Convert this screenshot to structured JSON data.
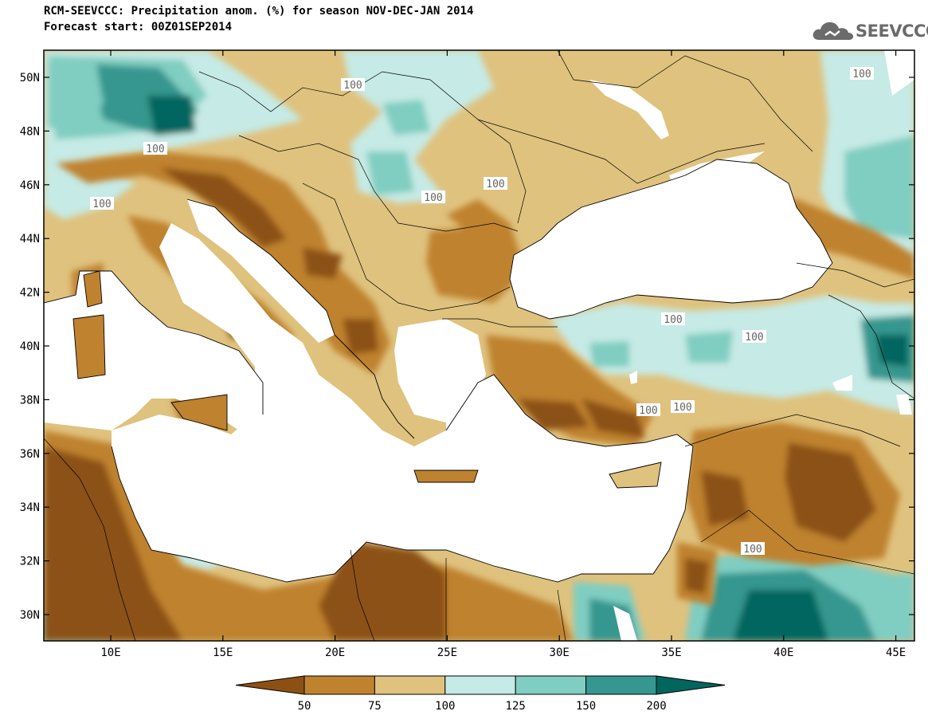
{
  "title_line1": "RCM-SEEVCCC: Precipitation anom. (%) for season NOV-DEC-JAN 2014",
  "title_line2": "Forecast start: 00Z01SEP2014",
  "logo": {
    "text": "SEEVCCC",
    "icon": "cloud-icon"
  },
  "map": {
    "lat_ticks": [
      "50N",
      "48N",
      "46N",
      "44N",
      "42N",
      "40N",
      "38N",
      "36N",
      "34N",
      "32N",
      "30N"
    ],
    "lon_ticks": [
      "10E",
      "15E",
      "20E",
      "25E",
      "30E",
      "35E",
      "40E",
      "45E"
    ],
    "contour_labels": [
      "100",
      "100",
      "100",
      "100",
      "100",
      "100",
      "100",
      "100",
      "100",
      "100",
      "100",
      "100"
    ],
    "colors": {
      "below_50": "#8c5112",
      "50_75": "#bf822e",
      "75_100": "#dfc27e",
      "100_125": "#c6eae5",
      "125_150": "#80cdc1",
      "150_200": "#35978f",
      "above_200": "#01665e",
      "sea": "#ffffff"
    }
  },
  "colorbar": {
    "labels": [
      "50",
      "75",
      "100",
      "125",
      "150",
      "200"
    ],
    "colors": [
      "#8c5112",
      "#bf822e",
      "#dfc27e",
      "#c6eae5",
      "#80cdc1",
      "#35978f",
      "#01665e"
    ]
  }
}
